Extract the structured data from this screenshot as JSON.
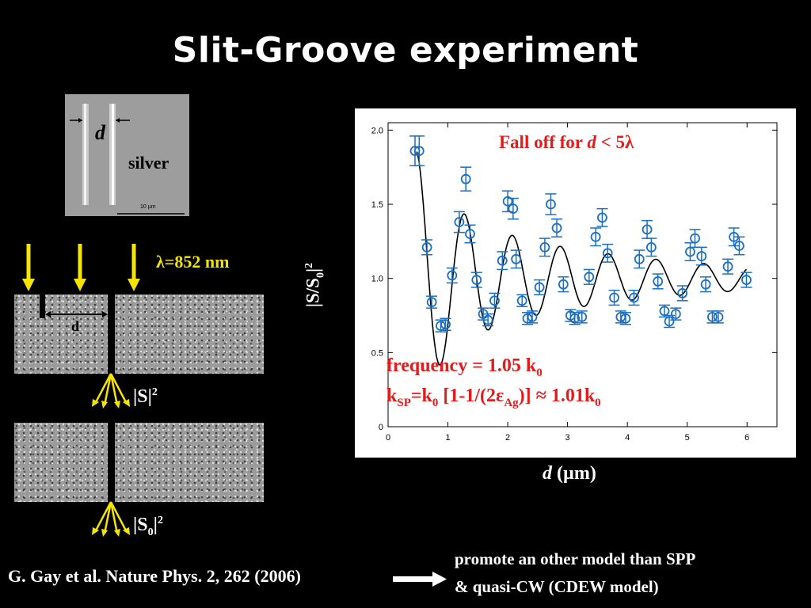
{
  "slide": {
    "title": "Slit-Groove experiment",
    "wavelength_label": "λ=852 nm",
    "d_label": "d",
    "S_label": "|S|",
    "S_exp": "2",
    "S0_label": "|S",
    "S0_sub": "0",
    "S0_end": "|",
    "S0_exp": "2",
    "citation": "G. Gay et al. Nature Phys. 2, 262 (2006)",
    "promote_line1": "promote an other model than SPP",
    "promote_line2": "& quasi-CW (CDEW model)"
  },
  "sem_image": {
    "d_label": "d",
    "material": "silver",
    "scale_bar": "10 µm"
  },
  "colors": {
    "background": "#000000",
    "data": "#1a6fc4",
    "fit": "#000000",
    "annotation": "#e41b1b",
    "arrow": "#f5e400"
  },
  "chart_data": {
    "type": "scatter",
    "xlim": [
      0,
      6.5
    ],
    "ylim": [
      0,
      2.05
    ],
    "xticks": [
      "0",
      "1",
      "2",
      "3",
      "4",
      "5",
      "6"
    ],
    "yticks": [
      "0",
      "0.5",
      "1.0",
      "1.5",
      "2.0"
    ],
    "xlabel_italic": "d",
    "xlabel_unit": "(µm)",
    "ylabel": "|S/S",
    "ylabel_sub": "0",
    "ylabel_end": "|",
    "ylabel_exp": "2",
    "annotation": {
      "prefix": "Fall off for ",
      "italic": "d",
      "suffix": " < 5λ"
    },
    "frequency_line": {
      "text": "frequency = 1.05 k",
      "sub": "0"
    },
    "ksp_line": {
      "k": "k",
      "k_sub": "SP",
      "mid1": "=k",
      "mid1_sub": "0",
      "mid2": " [1-1/(2ε",
      "eps_sub": "Ag",
      "mid3": ")] ≈ 1.01k",
      "end_sub": "0"
    },
    "series": [
      {
        "points": [
          {
            "x": 0.45,
            "y": 1.86,
            "e": 0.1
          },
          {
            "x": 0.52,
            "y": 1.86,
            "e": 0.1
          },
          {
            "x": 0.65,
            "y": 1.21,
            "e": 0.05
          },
          {
            "x": 0.73,
            "y": 0.84,
            "e": 0.04
          },
          {
            "x": 0.88,
            "y": 0.68,
            "e": 0.04
          },
          {
            "x": 0.96,
            "y": 0.69,
            "e": 0.04
          },
          {
            "x": 1.07,
            "y": 1.02,
            "e": 0.05
          },
          {
            "x": 1.19,
            "y": 1.38,
            "e": 0.07
          },
          {
            "x": 1.3,
            "y": 1.67,
            "e": 0.08
          },
          {
            "x": 1.37,
            "y": 1.3,
            "e": 0.06
          },
          {
            "x": 1.48,
            "y": 0.99,
            "e": 0.05
          },
          {
            "x": 1.59,
            "y": 0.76,
            "e": 0.04
          },
          {
            "x": 1.67,
            "y": 0.72,
            "e": 0.04
          },
          {
            "x": 1.78,
            "y": 0.85,
            "e": 0.05
          },
          {
            "x": 1.91,
            "y": 1.12,
            "e": 0.06
          },
          {
            "x": 2.0,
            "y": 1.52,
            "e": 0.07
          },
          {
            "x": 2.09,
            "y": 1.47,
            "e": 0.07
          },
          {
            "x": 2.14,
            "y": 1.13,
            "e": 0.06
          },
          {
            "x": 2.24,
            "y": 0.85,
            "e": 0.04
          },
          {
            "x": 2.33,
            "y": 0.73,
            "e": 0.04
          },
          {
            "x": 2.41,
            "y": 0.74,
            "e": 0.04
          },
          {
            "x": 2.53,
            "y": 0.94,
            "e": 0.05
          },
          {
            "x": 2.62,
            "y": 1.21,
            "e": 0.06
          },
          {
            "x": 2.72,
            "y": 1.5,
            "e": 0.07
          },
          {
            "x": 2.82,
            "y": 1.34,
            "e": 0.06
          },
          {
            "x": 2.93,
            "y": 0.96,
            "e": 0.05
          },
          {
            "x": 3.05,
            "y": 0.75,
            "e": 0.04
          },
          {
            "x": 3.12,
            "y": 0.73,
            "e": 0.04
          },
          {
            "x": 3.24,
            "y": 0.74,
            "e": 0.04
          },
          {
            "x": 3.36,
            "y": 1.01,
            "e": 0.05
          },
          {
            "x": 3.47,
            "y": 1.28,
            "e": 0.06
          },
          {
            "x": 3.58,
            "y": 1.41,
            "e": 0.06
          },
          {
            "x": 3.67,
            "y": 1.17,
            "e": 0.06
          },
          {
            "x": 3.78,
            "y": 0.87,
            "e": 0.05
          },
          {
            "x": 3.89,
            "y": 0.74,
            "e": 0.04
          },
          {
            "x": 3.97,
            "y": 0.73,
            "e": 0.04
          },
          {
            "x": 4.11,
            "y": 0.87,
            "e": 0.05
          },
          {
            "x": 4.2,
            "y": 1.13,
            "e": 0.06
          },
          {
            "x": 4.33,
            "y": 1.33,
            "e": 0.06
          },
          {
            "x": 4.4,
            "y": 1.21,
            "e": 0.06
          },
          {
            "x": 4.51,
            "y": 0.98,
            "e": 0.05
          },
          {
            "x": 4.62,
            "y": 0.78,
            "e": 0.04
          },
          {
            "x": 4.7,
            "y": 0.71,
            "e": 0.04
          },
          {
            "x": 4.81,
            "y": 0.76,
            "e": 0.04
          },
          {
            "x": 4.92,
            "y": 0.9,
            "e": 0.05
          },
          {
            "x": 5.05,
            "y": 1.18,
            "e": 0.06
          },
          {
            "x": 5.13,
            "y": 1.27,
            "e": 0.06
          },
          {
            "x": 5.24,
            "y": 1.15,
            "e": 0.06
          },
          {
            "x": 5.31,
            "y": 0.96,
            "e": 0.05
          },
          {
            "x": 5.42,
            "y": 0.74,
            "e": 0.04
          },
          {
            "x": 5.52,
            "y": 0.74,
            "e": 0.04
          },
          {
            "x": 5.68,
            "y": 1.08,
            "e": 0.05
          },
          {
            "x": 5.78,
            "y": 1.28,
            "e": 0.06
          },
          {
            "x": 5.87,
            "y": 1.22,
            "e": 0.06
          },
          {
            "x": 5.99,
            "y": 0.99,
            "e": 0.05
          }
        ]
      }
    ],
    "fit": {
      "type": "damped cosine",
      "x_range": [
        0.48,
        5.99
      ],
      "offset": 1.0,
      "amplitude": 0.45,
      "period_um": 0.8,
      "decay_um": 3.2,
      "peak_x": 0.48
    }
  }
}
